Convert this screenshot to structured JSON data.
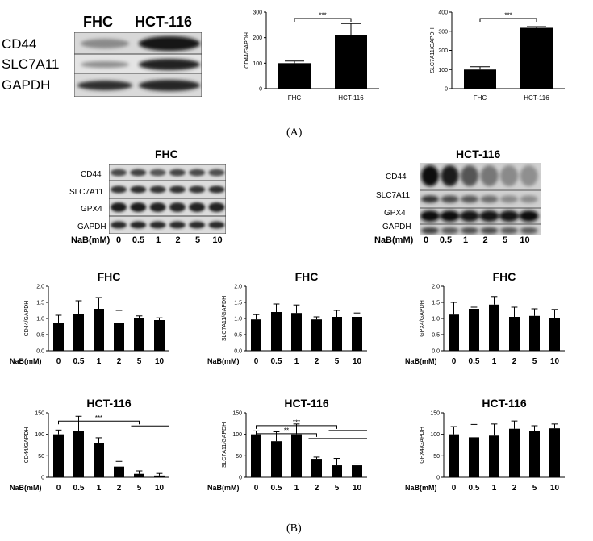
{
  "panel_labels": {
    "a": "(A)",
    "b": "(B)"
  },
  "blot_a": {
    "columns": [
      "FHC",
      "HCT-116"
    ],
    "rows": [
      "CD44",
      "SLC7A11",
      "GAPDH"
    ]
  },
  "blot_b_fhc": {
    "title": "FHC",
    "rows": [
      "CD44",
      "SLC7A11",
      "GPX4",
      "GAPDH"
    ],
    "dose_label": "NaB(mM)",
    "doses": [
      "0",
      "0.5",
      "1",
      "2",
      "5",
      "10"
    ]
  },
  "blot_b_hct": {
    "title": "HCT-116",
    "rows": [
      "CD44",
      "SLC7A11",
      "GPX4",
      "GAPDH"
    ],
    "dose_label": "NaB(mM)",
    "doses": [
      "0",
      "0.5",
      "1",
      "2",
      "5",
      "10"
    ]
  },
  "chart_data": [
    {
      "id": "a_cd44",
      "type": "bar",
      "categories": [
        "FHC",
        "HCT-116"
      ],
      "values": [
        100,
        210
      ],
      "errors": [
        8,
        45
      ],
      "ylabel": "CD44/GAPDH",
      "ylim": [
        0,
        300
      ],
      "yticks": [
        0,
        100,
        200,
        300
      ],
      "annotations": [
        {
          "text": "***",
          "from": 0,
          "to": 1
        }
      ]
    },
    {
      "id": "a_slc",
      "type": "bar",
      "categories": [
        "FHC",
        "HCT-116"
      ],
      "values": [
        100,
        318
      ],
      "errors": [
        15,
        6
      ],
      "ylabel": "SLC7A11/GAPDH",
      "ylim": [
        0,
        400
      ],
      "yticks": [
        0,
        100,
        200,
        300,
        400
      ],
      "annotations": [
        {
          "text": "***",
          "from": 0,
          "to": 1
        }
      ]
    },
    {
      "id": "b_fhc_cd44",
      "type": "bar",
      "title": "FHC",
      "categories": [
        "0",
        "0.5",
        "1",
        "2",
        "5",
        "10"
      ],
      "values": [
        0.85,
        1.15,
        1.3,
        0.85,
        1.0,
        0.95
      ],
      "errors": [
        0.25,
        0.4,
        0.35,
        0.4,
        0.08,
        0.07
      ],
      "ylabel": "CD44/GAPDH",
      "xlabel": "NaB(mM)",
      "ylim": [
        0,
        2.0
      ],
      "yticks": [
        0.0,
        0.5,
        1.0,
        1.5,
        2.0
      ],
      "tick_labels": [
        "0.0",
        "0.5",
        "1.0",
        "1.5",
        "2.0"
      ]
    },
    {
      "id": "b_fhc_slc",
      "type": "bar",
      "title": "FHC",
      "categories": [
        "0",
        "0.5",
        "1",
        "2",
        "5",
        "10"
      ],
      "values": [
        0.97,
        1.2,
        1.17,
        0.97,
        1.05,
        1.05
      ],
      "errors": [
        0.15,
        0.25,
        0.25,
        0.08,
        0.2,
        0.12
      ],
      "ylabel": "SLC7A11/GAPDH",
      "xlabel": "NaB(mM)",
      "ylim": [
        0,
        2.0
      ],
      "yticks": [
        0.0,
        0.5,
        1.0,
        1.5,
        2.0
      ],
      "tick_labels": [
        "0.0",
        "0.5",
        "1.0",
        "1.5",
        "2.0"
      ]
    },
    {
      "id": "b_fhc_gpx4",
      "type": "bar",
      "title": "FHC",
      "categories": [
        "0",
        "0.5",
        "1",
        "2",
        "5",
        "10"
      ],
      "values": [
        1.12,
        1.3,
        1.43,
        1.05,
        1.08,
        1.0
      ],
      "errors": [
        0.38,
        0.05,
        0.25,
        0.3,
        0.22,
        0.28
      ],
      "ylabel": "GPX4/GAPDH",
      "xlabel": "NaB(mM)",
      "ylim": [
        0,
        2.0
      ],
      "yticks": [
        0.0,
        0.5,
        1.0,
        1.5,
        2.0
      ],
      "tick_labels": [
        "0.0",
        "0.5",
        "1.0",
        "1.5",
        "2.0"
      ]
    },
    {
      "id": "b_hct_cd44",
      "type": "bar",
      "title": "HCT-116",
      "categories": [
        "0",
        "0.5",
        "1",
        "2",
        "5",
        "10"
      ],
      "values": [
        100,
        107,
        80,
        25,
        8,
        4
      ],
      "errors": [
        10,
        35,
        12,
        12,
        7,
        5
      ],
      "ylabel": "CD44/GAPDH",
      "xlabel": "NaB(mM)",
      "ylim": [
        0,
        150
      ],
      "yticks": [
        0,
        50,
        100,
        150
      ],
      "tick_labels": [
        "0",
        "50",
        "100",
        "150"
      ],
      "annotations": [
        {
          "text": "***",
          "from": 0,
          "to": 4
        }
      ]
    },
    {
      "id": "b_hct_slc",
      "type": "bar",
      "title": "HCT-116",
      "categories": [
        "0",
        "0.5",
        "1",
        "2",
        "5",
        "10"
      ],
      "values": [
        100,
        84,
        100,
        43,
        28,
        28
      ],
      "errors": [
        8,
        22,
        24,
        4,
        16,
        3
      ],
      "ylabel": "SLC7A11/GAPDH",
      "xlabel": "NaB(mM)",
      "ylim": [
        0,
        150
      ],
      "yticks": [
        0,
        50,
        100,
        150
      ],
      "tick_labels": [
        "0",
        "50",
        "100",
        "150"
      ],
      "annotations": [
        {
          "text": "**",
          "from": 0,
          "to": 3
        },
        {
          "text": "***",
          "from": 0,
          "to": 4
        }
      ]
    },
    {
      "id": "b_hct_gpx4",
      "type": "bar",
      "title": "HCT-116",
      "categories": [
        "0",
        "0.5",
        "1",
        "2",
        "5",
        "10"
      ],
      "values": [
        100,
        93,
        97,
        113,
        108,
        114
      ],
      "errors": [
        18,
        30,
        27,
        18,
        12,
        10
      ],
      "ylabel": "GPX4/GAPDH",
      "xlabel": "NaB(mM)",
      "ylim": [
        0,
        150
      ],
      "yticks": [
        0,
        50,
        100,
        150
      ],
      "tick_labels": [
        "0",
        "50",
        "100",
        "150"
      ]
    }
  ]
}
